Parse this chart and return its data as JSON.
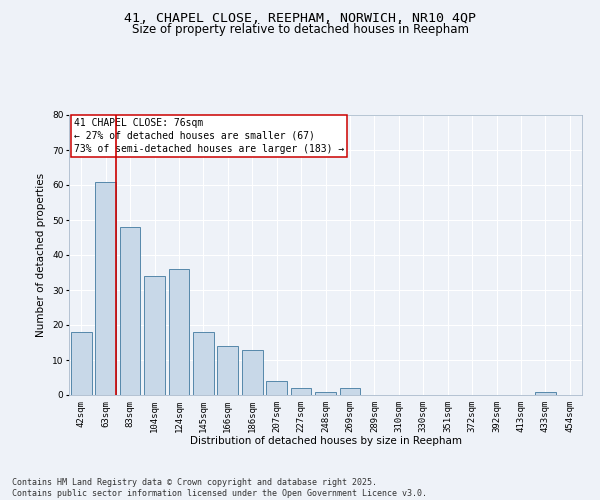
{
  "title_line1": "41, CHAPEL CLOSE, REEPHAM, NORWICH, NR10 4QP",
  "title_line2": "Size of property relative to detached houses in Reepham",
  "xlabel": "Distribution of detached houses by size in Reepham",
  "ylabel": "Number of detached properties",
  "bar_labels": [
    "42sqm",
    "63sqm",
    "83sqm",
    "104sqm",
    "124sqm",
    "145sqm",
    "166sqm",
    "186sqm",
    "207sqm",
    "227sqm",
    "248sqm",
    "269sqm",
    "289sqm",
    "310sqm",
    "330sqm",
    "351sqm",
    "372sqm",
    "392sqm",
    "413sqm",
    "433sqm",
    "454sqm"
  ],
  "bar_values": [
    18,
    61,
    48,
    34,
    36,
    18,
    14,
    13,
    4,
    2,
    1,
    2,
    0,
    0,
    0,
    0,
    0,
    0,
    0,
    1,
    0
  ],
  "bar_color": "#c8d8e8",
  "bar_edge_color": "#5588aa",
  "vline_color": "#cc0000",
  "annotation_text": "41 CHAPEL CLOSE: 76sqm\n← 27% of detached houses are smaller (67)\n73% of semi-detached houses are larger (183) →",
  "annotation_box_color": "#ffffff",
  "annotation_edge_color": "#cc0000",
  "ylim": [
    0,
    80
  ],
  "yticks": [
    0,
    10,
    20,
    30,
    40,
    50,
    60,
    70,
    80
  ],
  "footnote": "Contains HM Land Registry data © Crown copyright and database right 2025.\nContains public sector information licensed under the Open Government Licence v3.0.",
  "bg_color": "#eef2f8",
  "plot_bg_color": "#eef2f8",
  "grid_color": "#ffffff",
  "title_fontsize": 9.5,
  "subtitle_fontsize": 8.5,
  "axis_label_fontsize": 7.5,
  "tick_fontsize": 6.5,
  "annotation_fontsize": 7,
  "footnote_fontsize": 6
}
